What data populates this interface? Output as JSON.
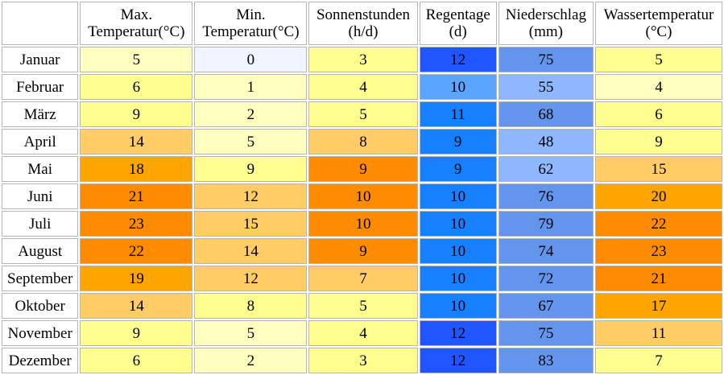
{
  "columns": [
    {
      "line1": "Max.",
      "line2": "Temperatur(°C)"
    },
    {
      "line1": "Min.",
      "line2": "Temperatur(°C)"
    },
    {
      "line1": "Sonnenstunden",
      "line2": "(h/d)"
    },
    {
      "line1": "Regentage",
      "line2": "(d)"
    },
    {
      "line1": "Niederschlag",
      "line2": "(mm)"
    },
    {
      "line1": "Wassertemperatur",
      "line2": "(°C)"
    }
  ],
  "rows": [
    {
      "month": "Januar",
      "values": [
        "5",
        "0",
        "3",
        "12",
        "75",
        "5"
      ],
      "colors": [
        "#ffffc0",
        "#f0f5ff",
        "#ffff90",
        "#1f56ff",
        "#6495ed",
        "#ffff90"
      ]
    },
    {
      "month": "Februar",
      "values": [
        "6",
        "1",
        "4",
        "10",
        "55",
        "4"
      ],
      "colors": [
        "#ffff90",
        "#ffffc0",
        "#ffff90",
        "#5aa5ff",
        "#8fb7ff",
        "#ffffc0"
      ]
    },
    {
      "month": "März",
      "values": [
        "9",
        "2",
        "5",
        "11",
        "68",
        "6"
      ],
      "colors": [
        "#ffff90",
        "#ffffc0",
        "#ffff90",
        "#1680ff",
        "#6495ed",
        "#ffff90"
      ]
    },
    {
      "month": "April",
      "values": [
        "14",
        "5",
        "8",
        "9",
        "48",
        "9"
      ],
      "colors": [
        "#ffcc66",
        "#ffffc0",
        "#ffcc66",
        "#1680ff",
        "#8fb7ff",
        "#ffff90"
      ]
    },
    {
      "month": "Mai",
      "values": [
        "18",
        "9",
        "9",
        "9",
        "62",
        "15"
      ],
      "colors": [
        "#ffa500",
        "#ffff90",
        "#ff8c00",
        "#1680ff",
        "#8fb7ff",
        "#ffcc66"
      ]
    },
    {
      "month": "Juni",
      "values": [
        "21",
        "12",
        "10",
        "10",
        "76",
        "20"
      ],
      "colors": [
        "#ff8c00",
        "#ffcc66",
        "#ff8c00",
        "#1680ff",
        "#6495ed",
        "#ffa500"
      ]
    },
    {
      "month": "Juli",
      "values": [
        "23",
        "15",
        "10",
        "10",
        "79",
        "22"
      ],
      "colors": [
        "#ff8c00",
        "#ffcc66",
        "#ff8c00",
        "#1680ff",
        "#6495ed",
        "#ff8c00"
      ]
    },
    {
      "month": "August",
      "values": [
        "22",
        "14",
        "9",
        "10",
        "74",
        "23"
      ],
      "colors": [
        "#ff8c00",
        "#ffcc66",
        "#ff8c00",
        "#1680ff",
        "#6495ed",
        "#ff8c00"
      ]
    },
    {
      "month": "September",
      "values": [
        "19",
        "12",
        "7",
        "10",
        "72",
        "21"
      ],
      "colors": [
        "#ffa500",
        "#ffcc66",
        "#ffcc66",
        "#1680ff",
        "#6495ed",
        "#ff8c00"
      ]
    },
    {
      "month": "Oktober",
      "values": [
        "14",
        "8",
        "5",
        "10",
        "67",
        "17"
      ],
      "colors": [
        "#ffcc66",
        "#ffff90",
        "#ffff90",
        "#1680ff",
        "#6495ed",
        "#ffa500"
      ]
    },
    {
      "month": "November",
      "values": [
        "9",
        "5",
        "4",
        "12",
        "75",
        "11"
      ],
      "colors": [
        "#ffff90",
        "#ffffc0",
        "#ffff90",
        "#1f56ff",
        "#6495ed",
        "#ffcc66"
      ]
    },
    {
      "month": "Dezember",
      "values": [
        "6",
        "2",
        "3",
        "12",
        "83",
        "7"
      ],
      "colors": [
        "#ffff90",
        "#ffffc0",
        "#ffff90",
        "#1f56ff",
        "#6495ed",
        "#ffff90"
      ]
    }
  ]
}
